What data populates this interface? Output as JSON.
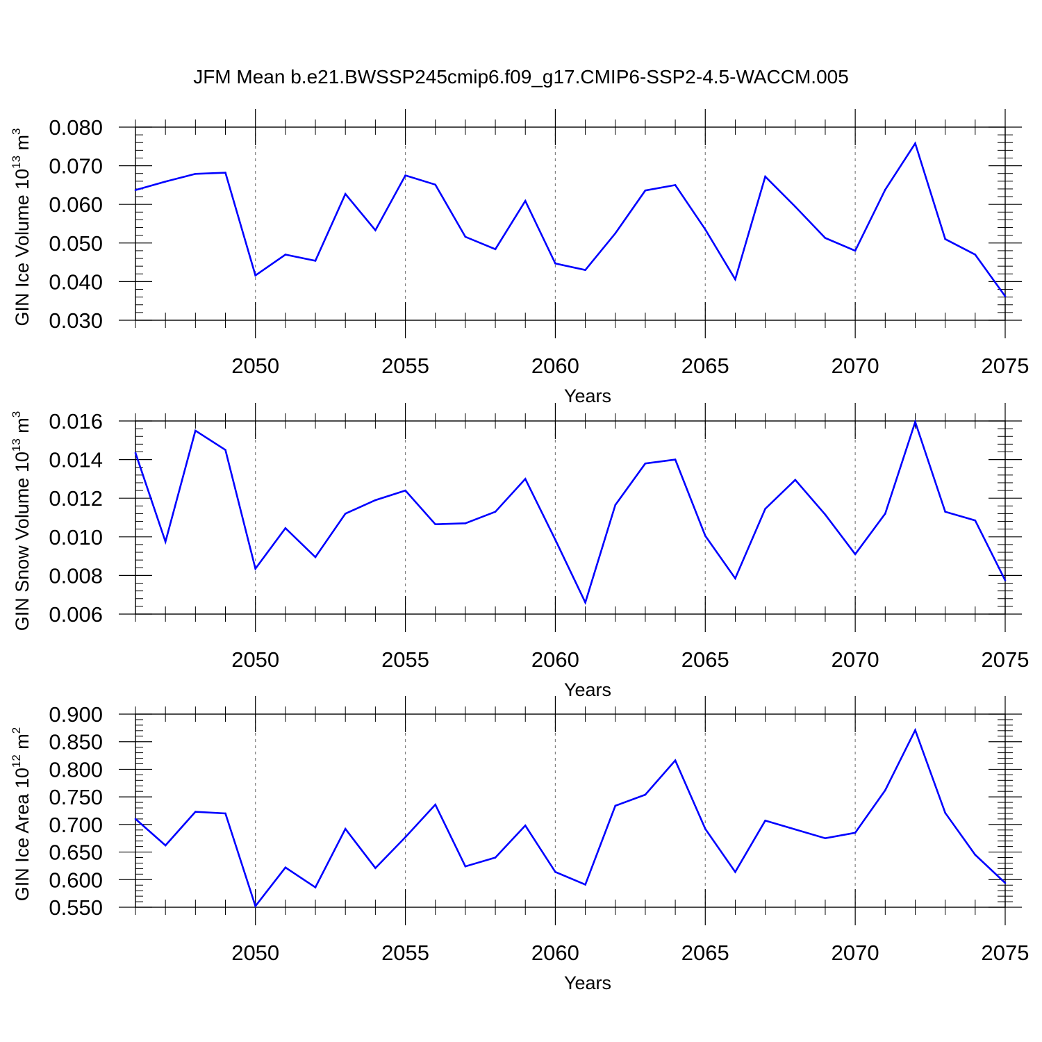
{
  "figure": {
    "title": "JFM Mean b.e21.BWSSP245cmip6.f09_g17.CMIP6-SSP2-4.5-WACCM.005"
  },
  "series_color": "#0000ff",
  "chart_data": [
    {
      "type": "line",
      "ylabel": {
        "text": "GIN Ice Volume 10",
        "exp": "13",
        "unit": " m",
        "unit_exp": "3"
      },
      "xlabel": "Years",
      "xlim": [
        2046,
        2075
      ],
      "ylim": [
        0.03,
        0.08
      ],
      "yticks": [
        "0.030",
        "0.040",
        "0.050",
        "0.060",
        "0.070",
        "0.080"
      ],
      "xticks": [
        "2050",
        "2055",
        "2060",
        "2065",
        "2070",
        "2075"
      ],
      "grid": "dashed vertical at major x ticks",
      "x": [
        2046,
        2047,
        2048,
        2049,
        2050,
        2051,
        2052,
        2053,
        2054,
        2055,
        2056,
        2057,
        2058,
        2059,
        2060,
        2061,
        2062,
        2063,
        2064,
        2065,
        2066,
        2067,
        2068,
        2069,
        2070,
        2071,
        2072,
        2073,
        2074,
        2075
      ],
      "values": [
        0.0637,
        0.0659,
        0.0679,
        0.0682,
        0.0416,
        0.047,
        0.0454,
        0.0627,
        0.0533,
        0.0675,
        0.0651,
        0.0516,
        0.0484,
        0.0609,
        0.0447,
        0.043,
        0.0525,
        0.0636,
        0.065,
        0.0535,
        0.0406,
        0.0672,
        0.0594,
        0.0513,
        0.048,
        0.0638,
        0.0758,
        0.051,
        0.047,
        0.0362
      ]
    },
    {
      "type": "line",
      "ylabel": {
        "text": "GIN Snow Volume 10",
        "exp": "13",
        "unit": " m",
        "unit_exp": "3"
      },
      "xlabel": "Years",
      "xlim": [
        2046,
        2075
      ],
      "ylim": [
        0.006,
        0.016
      ],
      "yticks": [
        "0.006",
        "0.008",
        "0.010",
        "0.012",
        "0.014",
        "0.016"
      ],
      "xticks": [
        "2050",
        "2055",
        "2060",
        "2065",
        "2070",
        "2075"
      ],
      "grid": "dashed vertical at major x ticks",
      "x": [
        2046,
        2047,
        2048,
        2049,
        2050,
        2051,
        2052,
        2053,
        2054,
        2055,
        2056,
        2057,
        2058,
        2059,
        2060,
        2061,
        2062,
        2063,
        2064,
        2065,
        2066,
        2067,
        2068,
        2069,
        2070,
        2071,
        2072,
        2073,
        2074,
        2075
      ],
      "values": [
        0.01435,
        0.00975,
        0.0155,
        0.0145,
        0.00835,
        0.01045,
        0.00895,
        0.0112,
        0.0119,
        0.0124,
        0.01065,
        0.0107,
        0.0113,
        0.013,
        0.00985,
        0.0066,
        0.01165,
        0.0138,
        0.014,
        0.01005,
        0.00785,
        0.01145,
        0.01295,
        0.01115,
        0.0091,
        0.0112,
        0.01595,
        0.0113,
        0.01085,
        0.00775
      ]
    },
    {
      "type": "line",
      "ylabel": {
        "text": "GIN Ice Area 10",
        "exp": "12",
        "unit": " m",
        "unit_exp": "2"
      },
      "xlabel": "Years",
      "xlim": [
        2046,
        2075
      ],
      "ylim": [
        0.55,
        0.9
      ],
      "yticks": [
        "0.550",
        "0.600",
        "0.650",
        "0.700",
        "0.750",
        "0.800",
        "0.850",
        "0.900"
      ],
      "xticks": [
        "2050",
        "2055",
        "2060",
        "2065",
        "2070",
        "2075"
      ],
      "grid": "dashed vertical at major x ticks",
      "x": [
        2046,
        2047,
        2048,
        2049,
        2050,
        2051,
        2052,
        2053,
        2054,
        2055,
        2056,
        2057,
        2058,
        2059,
        2060,
        2061,
        2062,
        2063,
        2064,
        2065,
        2066,
        2067,
        2068,
        2069,
        2070,
        2071,
        2072,
        2073,
        2074,
        2075
      ],
      "values": [
        0.71,
        0.662,
        0.723,
        0.72,
        0.552,
        0.622,
        0.586,
        0.692,
        0.621,
        0.677,
        0.736,
        0.624,
        0.64,
        0.698,
        0.614,
        0.591,
        0.734,
        0.754,
        0.816,
        0.692,
        0.614,
        0.707,
        0.691,
        0.675,
        0.685,
        0.762,
        0.871,
        0.721,
        0.645,
        0.594
      ]
    }
  ]
}
